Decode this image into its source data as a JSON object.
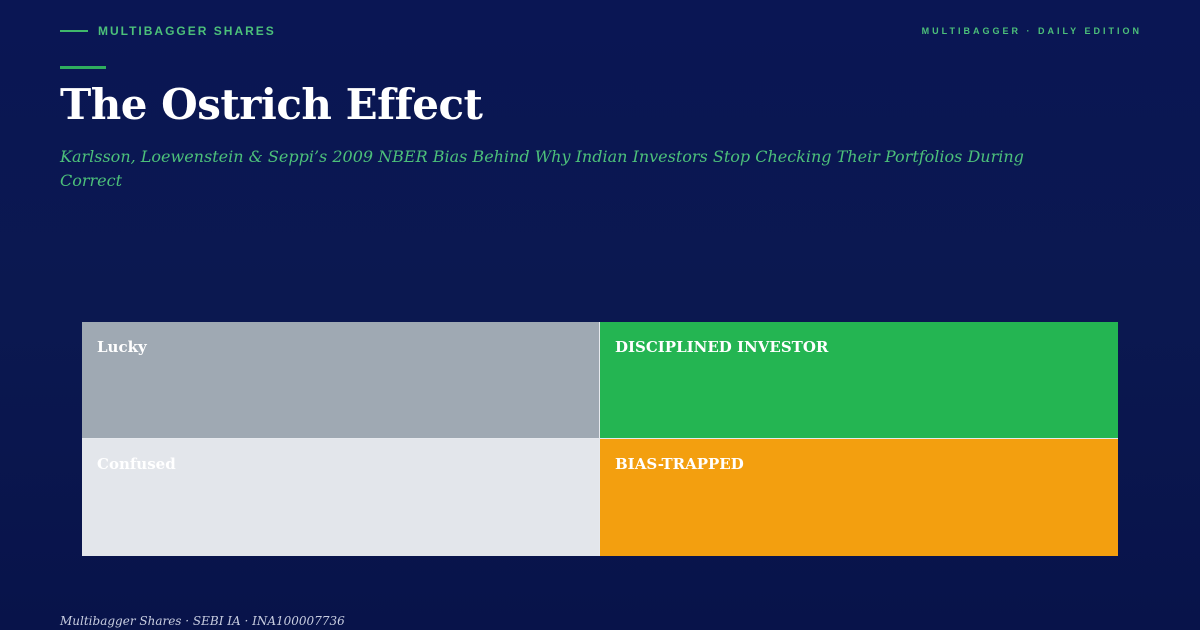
{
  "header": {
    "brand": "MULTIBAGGER SHARES",
    "edition": "MULTIBAGGER · DAILY EDITION"
  },
  "title": "The Ostrich Effect",
  "subtitle": "Karlsson, Loewenstein & Seppi’s 2009 NBER Bias Behind Why Indian Investors Stop Checking Their Portfolios During Correct",
  "matrix": {
    "cells": [
      {
        "label": "Lucky",
        "color": "#9fa9b3"
      },
      {
        "label": "DISCIPLINED INVESTOR",
        "color": "#24b552"
      },
      {
        "label": "Confused",
        "color": "#e3e6eb"
      },
      {
        "label": "BIAS-TRAPPED",
        "color": "#f39f0f"
      }
    ]
  },
  "footer": "Multibagger Shares · SEBI IA · INA100007736",
  "colors": {
    "background": "#0a1654",
    "accent": "#4cc07a"
  }
}
